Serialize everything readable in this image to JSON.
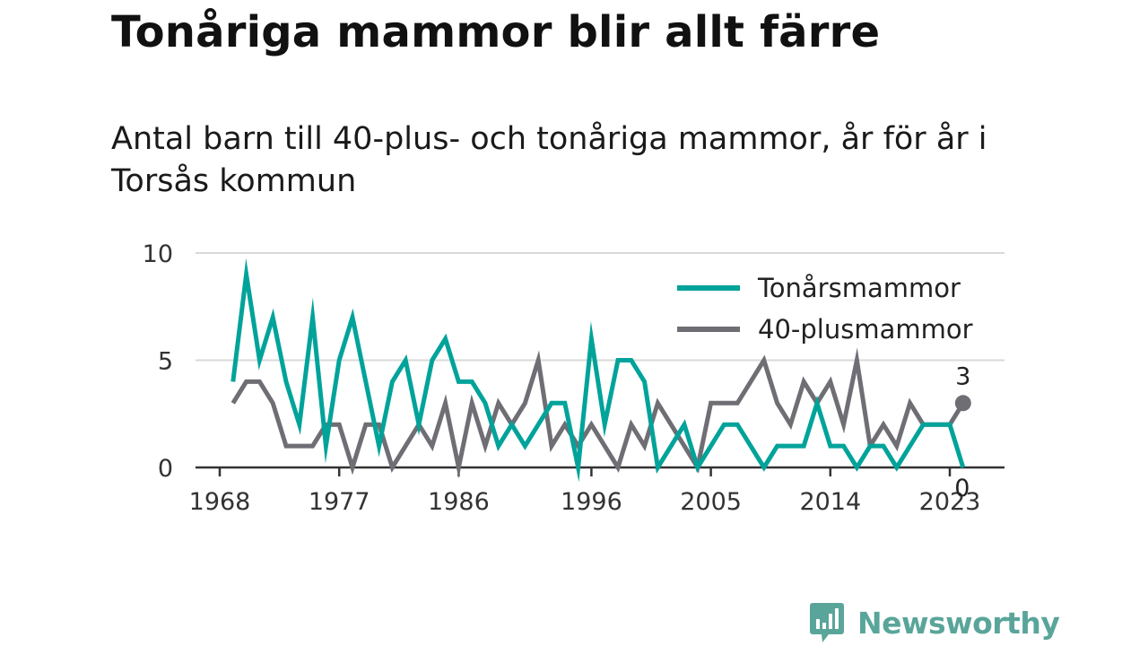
{
  "chart_data": {
    "type": "line",
    "title": "Tonåriga mammor blir allt färre",
    "subtitle": "Antal barn till 40-plus- och tonåriga mammor, år för år i Torsås kommun",
    "xlabel": "",
    "ylabel": "",
    "xlim": [
      1968,
      2024
    ],
    "ylim": [
      0,
      10
    ],
    "x_ticks": [
      1968,
      1977,
      1986,
      1996,
      2005,
      2014,
      2023
    ],
    "y_ticks": [
      0,
      5,
      10
    ],
    "grid": true,
    "legend_position": "top-right",
    "x": [
      1969,
      1970,
      1971,
      1972,
      1973,
      1974,
      1975,
      1976,
      1977,
      1978,
      1979,
      1980,
      1981,
      1982,
      1983,
      1984,
      1985,
      1986,
      1987,
      1988,
      1989,
      1990,
      1991,
      1992,
      1993,
      1994,
      1995,
      1996,
      1997,
      1998,
      1999,
      2000,
      2001,
      2002,
      2003,
      2004,
      2005,
      2006,
      2007,
      2008,
      2009,
      2010,
      2011,
      2012,
      2013,
      2014,
      2015,
      2016,
      2017,
      2018,
      2019,
      2020,
      2021,
      2022,
      2023,
      2024
    ],
    "series": [
      {
        "name": "Tonårsmammor",
        "color": "#00a39a",
        "values": [
          4,
          9,
          5,
          7,
          4,
          2,
          7,
          1,
          5,
          7,
          4,
          1,
          4,
          5,
          2,
          5,
          6,
          4,
          4,
          3,
          1,
          2,
          1,
          2,
          3,
          3,
          0,
          6,
          2,
          5,
          5,
          4,
          0,
          1,
          2,
          0,
          1,
          2,
          2,
          1,
          0,
          1,
          1,
          1,
          3,
          1,
          1,
          0,
          1,
          1,
          0,
          1,
          2,
          2,
          2,
          0
        ]
      },
      {
        "name": "40-plusmammor",
        "color": "#6e6e74",
        "values": [
          3,
          4,
          4,
          3,
          1,
          1,
          1,
          2,
          2,
          0,
          2,
          2,
          0,
          1,
          2,
          1,
          3,
          0,
          3,
          1,
          3,
          2,
          3,
          5,
          1,
          2,
          1,
          2,
          1,
          0,
          2,
          1,
          3,
          2,
          1,
          0,
          3,
          3,
          3,
          4,
          5,
          3,
          2,
          4,
          3,
          4,
          2,
          5,
          1,
          2,
          1,
          3,
          2,
          2,
          2,
          3
        ]
      }
    ],
    "end_labels": [
      {
        "series": "40-plusmammor",
        "text": "3"
      },
      {
        "series": "Tonårsmammor",
        "text": "0"
      }
    ]
  },
  "brand": {
    "name": "Newsworthy",
    "color": "#5aa59a",
    "icon": "bar-chart-speech-bubble-icon"
  }
}
